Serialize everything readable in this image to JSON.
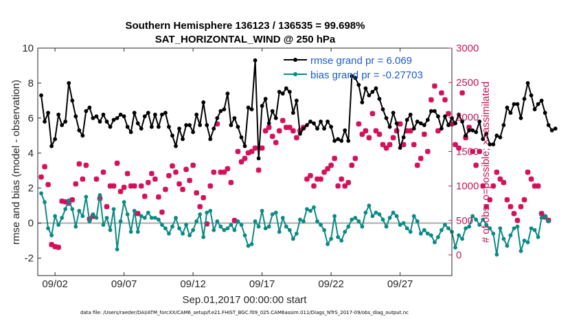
{
  "chart_data": {
    "type": "line",
    "title": "Southern Hemisphere 136123 / 136535 = 99.698%",
    "subtitle": "SAT_HORIZONTAL_WIND @ 250 hPa",
    "xlabel": "Sep.01,2017 00:00:00 start",
    "ylabel": "rmse and bias (model - observation)",
    "y2label": "# of obs: o=possible; ×=assimilated",
    "footnote": "data file: /Users/raeder/DAI/ATM_forcXX/CAM6_setup/f.e21.FHIST_BGC.f09_025.CAM6assim.011/Diags_NTrS_2017-09/obs_diag_output.nc",
    "xlim": [
      0.75,
      30.75
    ],
    "ylim": [
      -3,
      10
    ],
    "y2lim": [
      -300,
      3000
    ],
    "xticks": [
      2,
      7,
      12,
      17,
      22,
      27
    ],
    "xtick_labels": [
      "09/02",
      "09/07",
      "09/12",
      "09/17",
      "09/22",
      "09/27"
    ],
    "yticks": [
      -2,
      0,
      2,
      4,
      6,
      8,
      10
    ],
    "y2ticks": [
      0,
      500,
      1000,
      1500,
      2000,
      2500,
      3000
    ],
    "zero_line": 0,
    "legend": {
      "position": "top-right",
      "entries": [
        "rmse grand pr = 6.069",
        "bias grand pr = -0.27703"
      ]
    },
    "colors": {
      "rmse": "#000000",
      "bias": "#0a8a84",
      "obs": "#d40f5a",
      "zero_line": "#aaaaaa",
      "right_axis": "#c2185b",
      "legend_text": "#1a5ad6"
    },
    "x_start": 1,
    "x_step": 0.25,
    "series": [
      {
        "name": "rmse",
        "axis": "left",
        "values": [
          7.3,
          5.8,
          6.3,
          4.4,
          4.8,
          6.2,
          5.6,
          5.8,
          8.0,
          7.0,
          6.1,
          5.3,
          5.0,
          6.4,
          6.6,
          6.0,
          6.1,
          5.8,
          6.2,
          5.8,
          5.5,
          5.9,
          6.0,
          6.2,
          6.1,
          5.5,
          5.2,
          6.3,
          5.7,
          5.4,
          6.1,
          6.3,
          5.5,
          6.2,
          5.5,
          6.2,
          6.3,
          5.5,
          5.0,
          4.4,
          5.4,
          4.8,
          5.6,
          5.6,
          5.2,
          6.2,
          5.6,
          6.9,
          5.6,
          4.8,
          5.4,
          6.0,
          6.4,
          6.5,
          7.4,
          5.6,
          6.0,
          5.5,
          4.9,
          4.4,
          6.6,
          6.5,
          9.3,
          3.7,
          6.7,
          7.1,
          5.7,
          6.4,
          6.0,
          7.5,
          7.4,
          7.7,
          7.5,
          6.3,
          7.0,
          5.1,
          5.4,
          5.6,
          5.8,
          5.7,
          5.4,
          5.8,
          5.4,
          5.8,
          5.5,
          4.7,
          4.8,
          4.7,
          5.3,
          4.7,
          8.4,
          8.3,
          7.9,
          6.9,
          7.7,
          7.3,
          7.5,
          7.7,
          7.1,
          6.5,
          6.0,
          5.5,
          6.3,
          5.7,
          4.3,
          4.9,
          5.9,
          6.2,
          5.4,
          5.8,
          5.7,
          5.6,
          5.9,
          6.4,
          6.4,
          6.1,
          5.4,
          6.1,
          5.6,
          6.0,
          5.7,
          6.2,
          5.8,
          5.0,
          5.3,
          5.3,
          5.2,
          5.8,
          4.8,
          5.1,
          4.5,
          4.5,
          5.0,
          4.9,
          5.6,
          6.6,
          6.3,
          6.8,
          6.8,
          6.0,
          7.1,
          8.0,
          7.3,
          6.5,
          6.8,
          7.0,
          6.3,
          5.6,
          5.3,
          5.4
        ]
      },
      {
        "name": "bias",
        "axis": "left",
        "values": [
          1.7,
          1.2,
          -0.3,
          -0.7,
          0.4,
          -0.1,
          0.3,
          0.8,
          1.3,
          0.8,
          -0.2,
          0.7,
          0.4,
          1.5,
          0.1,
          0.5,
          0.3,
          1.6,
          -0.1,
          0.3,
          -0.4,
          0.8,
          -1.5,
          0.1,
          1.2,
          0.5,
          -0.5,
          0.7,
          -0.5,
          0.4,
          0.3,
          0.6,
          0.3,
          0.3,
          0.2,
          -0.1,
          -0.3,
          -0.6,
          -0.2,
          0.3,
          -0.3,
          -0.6,
          -0.1,
          -0.7,
          -0.4,
          0.1,
          0.5,
          -0.8,
          0.6,
          0.7,
          -0.4,
          0.1,
          -0.2,
          -0.4,
          -0.3,
          -0.1,
          -0.4,
          0.1,
          -0.1,
          -0.7,
          -1.3,
          -1.2,
          0.1,
          -0.2,
          0.7,
          -0.3,
          -0.2,
          0.5,
          0.6,
          -0.5,
          0.3,
          -0.2,
          -0.4,
          -0.9,
          -0.6,
          0.2,
          0.1,
          0.8,
          0.7,
          0.9,
          0.1,
          -0.1,
          -0.4,
          -1.2,
          -0.9,
          0.4,
          -0.8,
          -1.0,
          -0.5,
          -0.2,
          0.2,
          0.3,
          0.1,
          -0.2,
          0.6,
          1.0,
          0.4,
          0.6,
          0.5,
          0.2,
          -0.2,
          0.3,
          0.6,
          0.4,
          -0.1,
          0.0,
          -0.3,
          -0.5,
          0.4,
          0.1,
          -0.6,
          -0.4,
          -0.6,
          -0.7,
          -1.1,
          -0.8,
          -0.4,
          -0.1,
          -0.3,
          -0.5,
          -1.4,
          -0.7,
          -0.9,
          -0.3,
          -0.2,
          0.4,
          0.2,
          -0.1,
          0.2,
          -0.1,
          -0.3,
          -0.6,
          -1.8,
          -0.3,
          -0.9,
          -1.3,
          -0.7,
          -0.3,
          -0.2,
          -1.6,
          -1.0,
          -1.1,
          -0.3,
          -0.4,
          -0.8,
          0.3,
          0.4,
          0.1
        ]
      },
      {
        "name": "obs_assimilated",
        "axis": "right",
        "marker": "x",
        "values": [
          1130,
          1280,
          1020,
          150,
          120,
          110,
          780,
          770,
          750,
          800,
          1030,
          1320,
          1100,
          1300,
          520,
          560,
          1100,
          820,
          1200,
          700,
          1000,
          1000,
          1330,
          920,
          980,
          1180,
          1000,
          1000,
          600,
          1000,
          850,
          1050,
          1180,
          1100,
          840,
          620,
          950,
          1150,
          1290,
          1200,
          1030,
          950,
          1240,
          1080,
          1300,
          900,
          700,
          830,
          450,
          1000,
          1200,
          1900,
          1200,
          1200,
          1250,
          1050,
          500,
          1500,
          1350,
          1400,
          1480,
          1500,
          1550,
          1230,
          1550,
          1800,
          1850,
          1720,
          1630,
          1800,
          1950,
          1850,
          1850,
          1800,
          1700,
          1800,
          1850,
          1100,
          1150,
          1000,
          1100,
          1100,
          1200,
          1250,
          1300,
          1400,
          1000,
          1100,
          1000,
          1050,
          1300,
          1400,
          1900,
          1750,
          1800,
          1700,
          2050,
          1800,
          1750,
          1600,
          1550,
          1600,
          1700,
          1800,
          1900,
          1600,
          1800,
          1800,
          1600,
          1300,
          1400,
          1750,
          1500,
          2250,
          2450,
          1800,
          2350,
          2250,
          2050,
          1900,
          1600,
          1550,
          2350,
          1700,
          1850,
          1500,
          1300,
          1500,
          1000,
          700,
          800,
          1000,
          1200,
          1100,
          1050,
          800,
          700,
          600,
          500,
          700,
          800,
          1200,
          1100,
          1000,
          1000,
          600,
          550,
          500
        ]
      },
      {
        "name": "obs_possible",
        "axis": "right",
        "marker": "o",
        "values": [
          1130,
          1280,
          1020,
          150,
          120,
          110,
          780,
          770,
          750,
          800,
          1030,
          1320,
          1100,
          1300,
          520,
          560,
          1100,
          820,
          1200,
          700,
          1000,
          1000,
          1330,
          920,
          980,
          1180,
          1000,
          1000,
          600,
          1000,
          850,
          1050,
          1180,
          1100,
          840,
          620,
          950,
          1150,
          1290,
          1200,
          1030,
          950,
          1240,
          1080,
          1300,
          900,
          700,
          830,
          450,
          1000,
          1200,
          1900,
          1200,
          1200,
          1250,
          1050,
          500,
          1500,
          1350,
          1400,
          1480,
          1500,
          1550,
          1230,
          1550,
          1800,
          1850,
          1720,
          1630,
          1800,
          1950,
          1850,
          1850,
          1800,
          1700,
          1800,
          1850,
          1100,
          1150,
          1000,
          1100,
          1100,
          1200,
          1250,
          1300,
          1400,
          1000,
          1100,
          1000,
          1050,
          1300,
          1400,
          1900,
          1750,
          1800,
          1700,
          2050,
          1800,
          1750,
          1600,
          1550,
          1600,
          1700,
          1800,
          1900,
          1600,
          1800,
          1800,
          1600,
          1300,
          1400,
          1750,
          1500,
          2250,
          2450,
          1800,
          2350,
          2250,
          2050,
          1900,
          1600,
          1550,
          2350,
          1700,
          1850,
          1500,
          1300,
          1500,
          1000,
          700,
          800,
          1000,
          1200,
          1100,
          1050,
          800,
          700,
          600,
          500,
          700,
          800,
          1200,
          1100,
          1000,
          1000,
          600,
          550,
          500
        ]
      }
    ]
  }
}
